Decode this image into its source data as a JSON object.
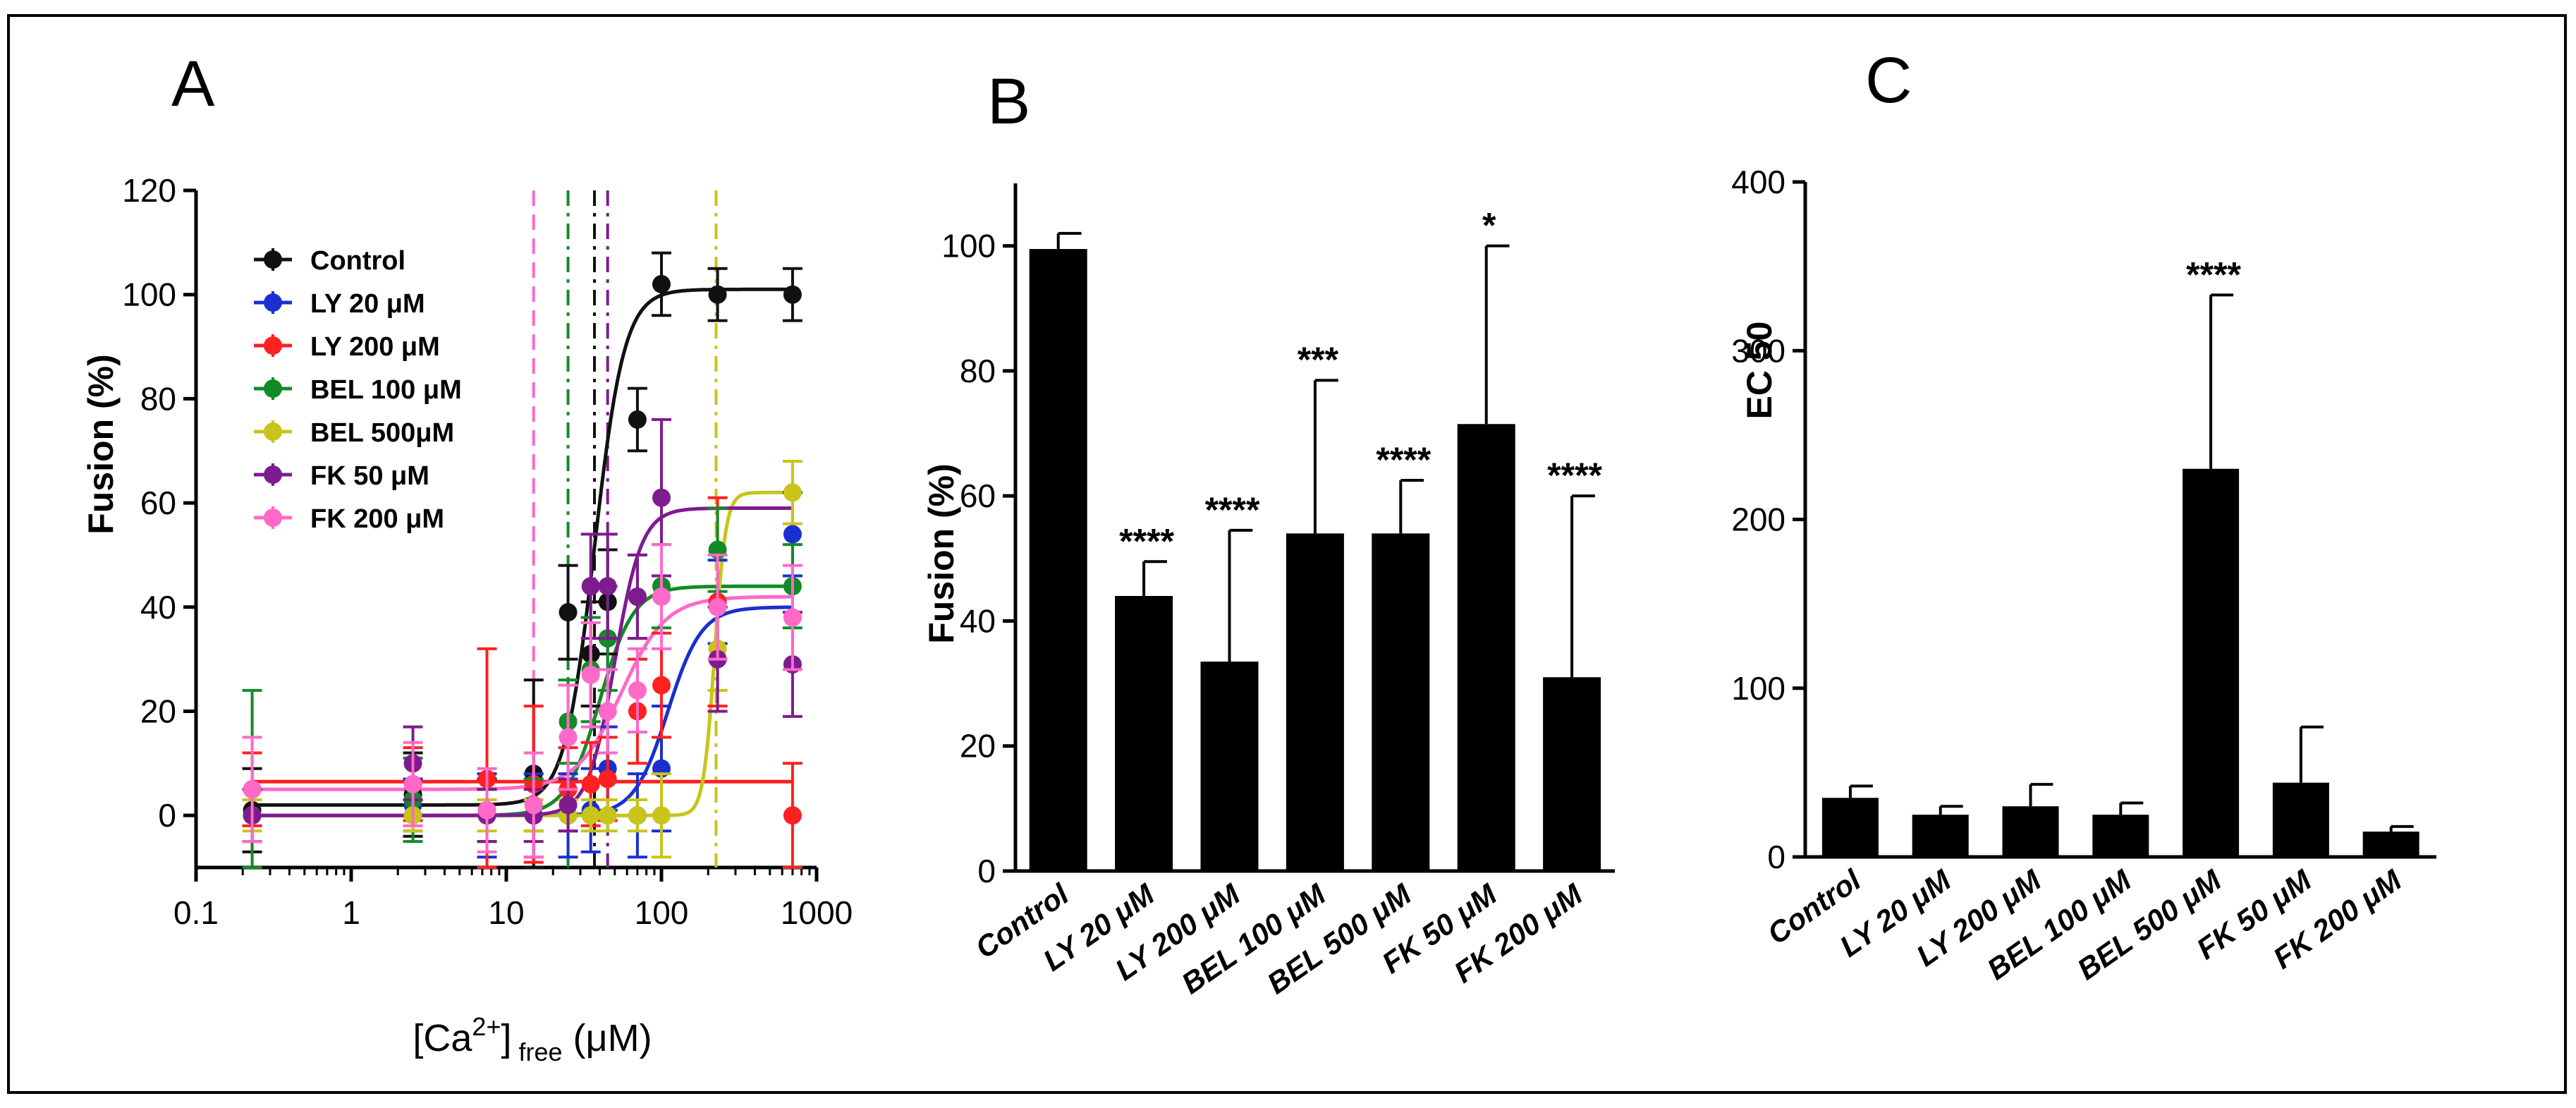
{
  "chart_data": [
    {
      "panel": "A",
      "type": "scatter",
      "xscale": "log",
      "xlim": [
        0.1,
        1000
      ],
      "ylim": [
        -10,
        120
      ],
      "xticks": [
        "0.1",
        "1",
        "10",
        "100",
        "1000"
      ],
      "yticks": [
        "0",
        "20",
        "40",
        "60",
        "80",
        "100",
        "120"
      ],
      "xlabel_parts": [
        "[Ca",
        "2+",
        "]",
        "free",
        " (μM)"
      ],
      "ylabel": "Fusion (%)",
      "legend_position": "top-left",
      "x": [
        0.23,
        2.5,
        7.5,
        15,
        25,
        35,
        45,
        70,
        100,
        230,
        700
      ],
      "series": [
        {
          "name": "Control",
          "color": "#111111",
          "values": [
            1,
            4,
            1,
            8,
            39,
            31,
            41,
            76,
            102,
            100,
            100
          ],
          "errors": [
            8,
            8,
            6,
            18,
            9,
            10,
            10,
            6,
            6,
            5,
            5
          ],
          "fit": {
            "bottom": 2,
            "top": 101,
            "ec50": 37,
            "hill": 4.5
          },
          "ec50_line": 37,
          "ec50_dash": "dashdot"
        },
        {
          "name": "LY 20 μM",
          "color": "#1a2fd0",
          "values": [
            0,
            2,
            0,
            0,
            0,
            1,
            9,
            0,
            9,
            41,
            54
          ],
          "errors": [
            5,
            5,
            8,
            8,
            8,
            8,
            8,
            8,
            12,
            8,
            8
          ],
          "fit": {
            "bottom": 0,
            "top": 40,
            "ec50": 110,
            "hill": 4
          },
          "ec50_line": null,
          "ec50_dash": null
        },
        {
          "name": "LY 200 μM",
          "color": "#ff2020",
          "values": [
            5,
            6,
            7,
            6,
            5,
            6,
            7,
            20,
            25,
            41,
            0
          ],
          "errors": [
            7,
            7,
            25,
            15,
            8,
            8,
            8,
            10,
            10,
            20,
            10
          ],
          "fit": {
            "bottom": 6.5,
            "top": 6.5,
            "ec50": 100,
            "hill": 1
          },
          "ec50_line": null,
          "ec50_dash": null
        },
        {
          "name": "BEL 100 μM",
          "color": "#138a28",
          "values": [
            0,
            3,
            0,
            2,
            18,
            28,
            34,
            42,
            44,
            51,
            44
          ],
          "errors": [
            24,
            8,
            5,
            5,
            8,
            10,
            10,
            8,
            8,
            8,
            8
          ],
          "fit": {
            "bottom": 0,
            "top": 44,
            "ec50": 40,
            "hill": 4
          },
          "ec50_line": 25,
          "ec50_dash": "dashdot"
        },
        {
          "name": "BEL 500μM",
          "color": "#c8c41a",
          "values": [
            0,
            0,
            0,
            0,
            0,
            0,
            0,
            0,
            0,
            32,
            62
          ],
          "errors": [
            3,
            3,
            3,
            3,
            3,
            3,
            3,
            3,
            8,
            8,
            6
          ],
          "fit": {
            "bottom": 0,
            "top": 62,
            "ec50": 220,
            "hill": 12
          },
          "ec50_line": 225,
          "ec50_dash": "dashdot"
        },
        {
          "name": "FK 50 μM",
          "color": "#7d1c8e",
          "values": [
            0,
            10,
            0,
            0,
            2,
            44,
            44,
            42,
            61,
            30,
            29
          ],
          "errors": [
            5,
            7,
            5,
            5,
            5,
            10,
            10,
            8,
            15,
            10,
            10
          ],
          "fit": {
            "bottom": 0,
            "top": 59,
            "ec50": 50,
            "hill": 5
          },
          "ec50_line": 45,
          "ec50_dash": "dashdot"
        },
        {
          "name": "FK 200 μM",
          "color": "#ff69c8",
          "values": [
            5,
            6,
            1,
            2,
            15,
            27,
            20,
            24,
            42,
            40,
            38
          ],
          "errors": [
            10,
            8,
            8,
            10,
            10,
            10,
            8,
            8,
            10,
            10,
            10
          ],
          "fit": {
            "bottom": 5,
            "top": 42,
            "ec50": 55,
            "hill": 3
          },
          "ec50_line": 15,
          "ec50_dash": "dashed"
        }
      ]
    },
    {
      "panel": "B",
      "type": "bar",
      "categories": [
        "Control",
        "LY 20 μM",
        "LY 200 μM",
        "BEL 100 μM",
        "BEL 500 μM",
        "FK 50 μM",
        "FK 200 μM"
      ],
      "values": [
        99.5,
        44,
        33.5,
        54,
        54,
        71.5,
        31
      ],
      "errors": [
        2.5,
        5.5,
        21,
        24.5,
        8.5,
        28.5,
        29
      ],
      "annotations": [
        "",
        "****",
        "****",
        "***",
        "****",
        "*",
        "****"
      ],
      "ylabel": "Fusion (%)",
      "ylim": [
        0,
        110
      ],
      "yticks": [
        "0",
        "20",
        "40",
        "60",
        "80",
        "100"
      ]
    },
    {
      "panel": "C",
      "type": "bar",
      "categories": [
        "Control",
        "LY 20 μM",
        "LY 200 μM",
        "BEL 100 μM",
        "BEL 500 μM",
        "FK 50 μM",
        "FK 200 μM"
      ],
      "values": [
        35,
        25,
        30,
        25,
        230,
        44,
        15
      ],
      "errors": [
        7,
        5,
        13,
        7,
        103,
        33,
        3
      ],
      "annotations": [
        "",
        "",
        "",
        "",
        "****",
        "",
        ""
      ],
      "ylabel": "EC 50",
      "ylim": [
        0,
        400
      ],
      "yticks": [
        "0",
        "100",
        "200",
        "300",
        "400"
      ]
    }
  ]
}
